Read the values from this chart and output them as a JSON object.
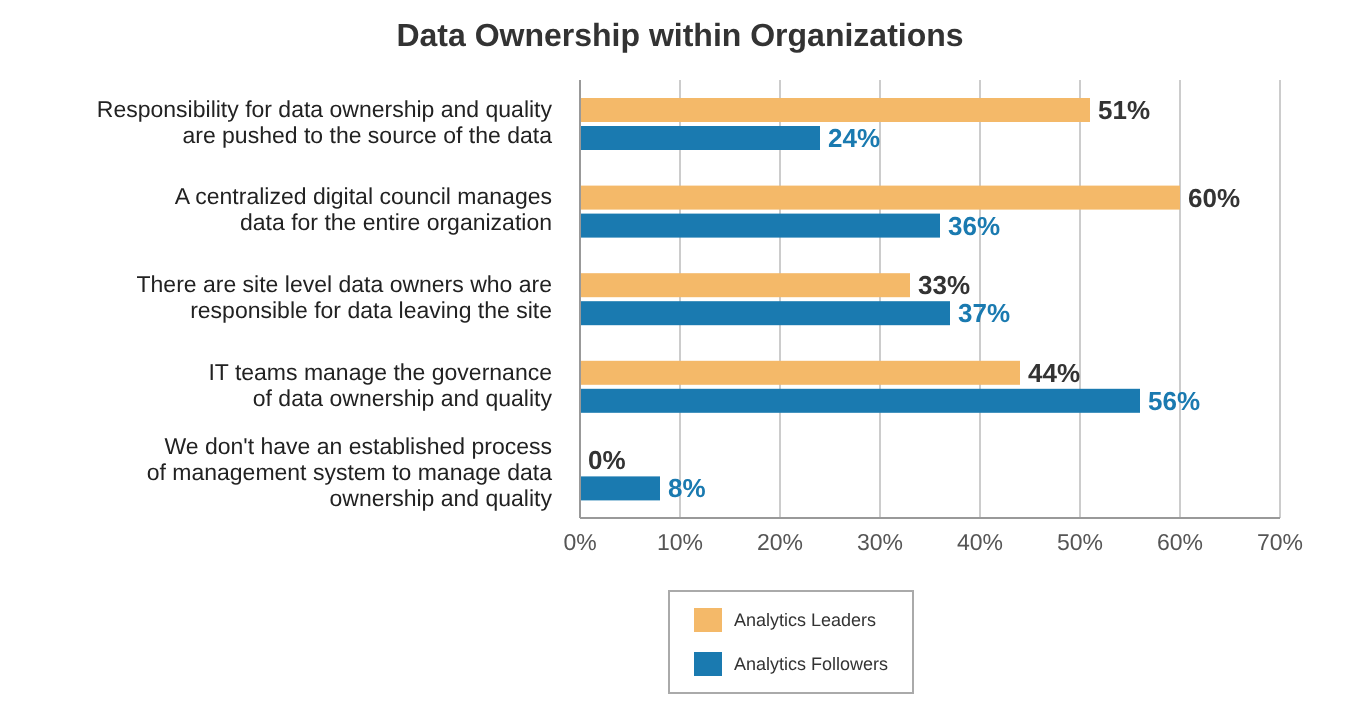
{
  "chart_data": {
    "type": "bar",
    "orientation": "horizontal",
    "title": "Data Ownership within Organizations",
    "categories": [
      "Responsibility for data ownership and quality\nare pushed to the source of the data",
      "A centralized digital council manages\ndata for the entire organization",
      "There are site level data owners who are\nresponsible for data leaving the site",
      "IT teams manage the governance\nof data ownership and quality",
      "We don't have an established process\nof management system to manage data\nownership and quality"
    ],
    "series": [
      {
        "name": "Analytics Leaders",
        "color": "#f4b969",
        "values": [
          51,
          60,
          33,
          44,
          0
        ],
        "value_labels": [
          "51%",
          "60%",
          "33%",
          "44%",
          "0%"
        ]
      },
      {
        "name": "Analytics Followers",
        "color": "#1a7ab0",
        "values": [
          24,
          36,
          37,
          56,
          8
        ],
        "value_labels": [
          "24%",
          "36%",
          "37%",
          "56%",
          "8%"
        ]
      }
    ],
    "xlim": [
      0,
      70
    ],
    "xticks": [
      {
        "value": 0,
        "label": "0%"
      },
      {
        "value": 10,
        "label": "10%"
      },
      {
        "value": 20,
        "label": "20%"
      },
      {
        "value": 30,
        "label": "30%"
      },
      {
        "value": 40,
        "label": "40%"
      },
      {
        "value": 50,
        "label": "50%"
      },
      {
        "value": 60,
        "label": "60%"
      },
      {
        "value": 70,
        "label": "70%"
      }
    ],
    "grid": "x",
    "legend": "bottom"
  }
}
